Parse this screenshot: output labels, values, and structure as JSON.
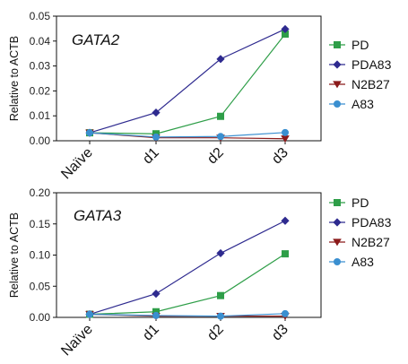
{
  "chart_data": [
    {
      "type": "line",
      "title": "GATA2",
      "ylabel": "Relative to ACTB",
      "xlabel": "",
      "categories": [
        "Naïve",
        "d1",
        "d2",
        "d3"
      ],
      "ylim": [
        0,
        0.05
      ],
      "yticks": [
        "0.00",
        "0.01",
        "0.02",
        "0.03",
        "0.04",
        "0.05"
      ],
      "series": [
        {
          "name": "PD",
          "color": "#2e9e48",
          "marker": "square",
          "values": [
            0.0032,
            0.0028,
            0.0098,
            0.0428
          ]
        },
        {
          "name": "PDA83",
          "color": "#2e2a8f",
          "marker": "diamond",
          "values": [
            0.0032,
            0.0113,
            0.0328,
            0.0448
          ]
        },
        {
          "name": "N2B27",
          "color": "#8b1a1a",
          "marker": "triangle-down",
          "values": [
            0.0032,
            0.0012,
            0.0012,
            0.0008
          ]
        },
        {
          "name": "A83",
          "color": "#3a8fd0",
          "marker": "circle",
          "values": [
            0.0032,
            0.0015,
            0.0017,
            0.0033
          ]
        }
      ]
    },
    {
      "type": "line",
      "title": "GATA3",
      "ylabel": "Relative to ACTB",
      "xlabel": "",
      "categories": [
        "Naïve",
        "d1",
        "d2",
        "d3"
      ],
      "ylim": [
        0,
        0.2
      ],
      "yticks": [
        "0.00",
        "0.05",
        "0.10",
        "0.15",
        "0.20"
      ],
      "series": [
        {
          "name": "PD",
          "color": "#2e9e48",
          "marker": "square",
          "values": [
            0.005,
            0.009,
            0.035,
            0.102
          ]
        },
        {
          "name": "PDA83",
          "color": "#2e2a8f",
          "marker": "diamond",
          "values": [
            0.005,
            0.038,
            0.103,
            0.155
          ]
        },
        {
          "name": "N2B27",
          "color": "#8b1a1a",
          "marker": "triangle-down",
          "values": [
            0.005,
            0.002,
            0.002,
            0.002
          ]
        },
        {
          "name": "A83",
          "color": "#3a8fd0",
          "marker": "circle",
          "values": [
            0.005,
            0.003,
            0.002,
            0.006
          ]
        }
      ]
    }
  ]
}
